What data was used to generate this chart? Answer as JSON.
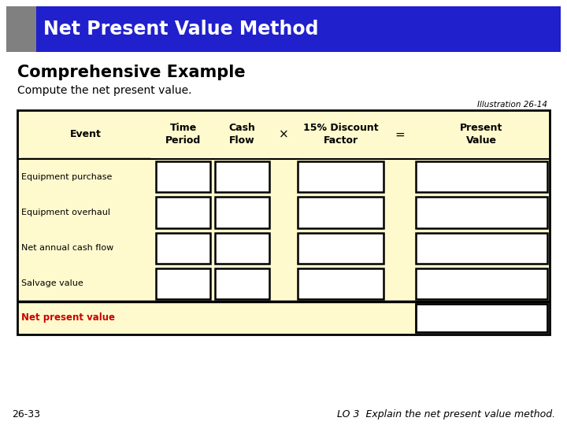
{
  "title_bar_text": "Net Present Value Method",
  "title_bar_bg": "#2020CC",
  "title_bar_gray": "#808080",
  "subtitle": "Comprehensive Example",
  "body_text": "Compute the net present value.",
  "illustration": "Illustration 26-14",
  "bg_color": "#FFFFFF",
  "table_bg": "#FFFACD",
  "table_border": "#000000",
  "npv_label": "Net present value",
  "npv_color": "#CC0000",
  "row_label_color": "#000000",
  "header_color": "#000000",
  "multiply_sign": "×",
  "equals_sign": "=",
  "footer_left": "26-33",
  "footer_right": "LO 3  Explain the net present value method.",
  "cell_fill": "#FFFFFF",
  "cell_border": "#000000",
  "row_labels": [
    "Equipment purchase",
    "Equipment overhaul",
    "Net annual cash flow",
    "Salvage value"
  ]
}
